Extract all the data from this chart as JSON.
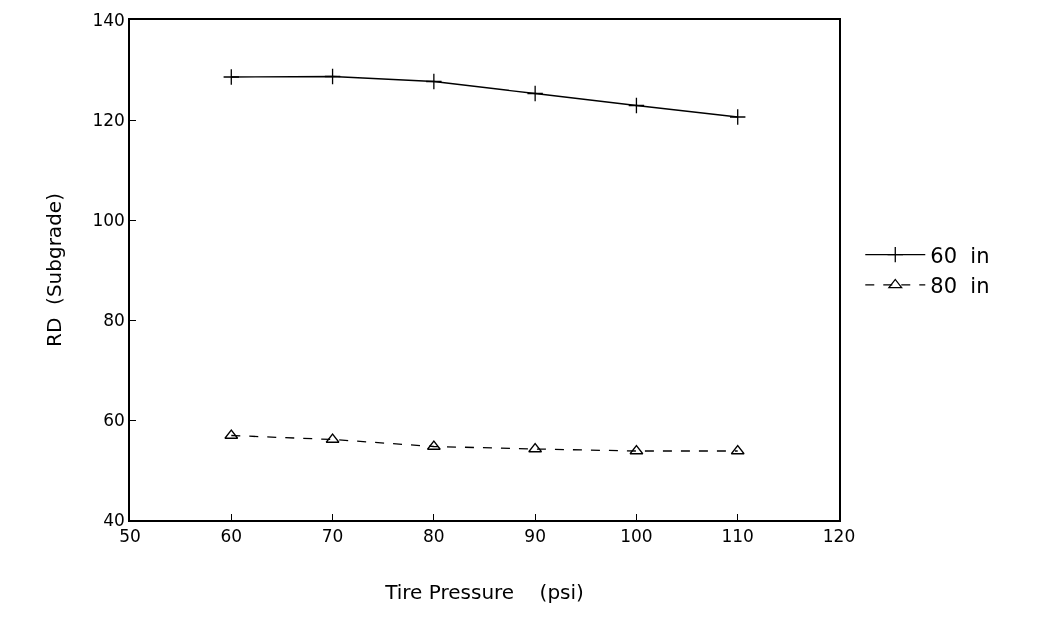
{
  "chart_data": {
    "type": "line",
    "xlabel": "Tire Pressure    (psi)",
    "ylabel": "RD  (Subgrade)",
    "x": [
      60,
      70,
      80,
      90,
      100,
      110
    ],
    "series": [
      {
        "name": "60  in",
        "color": "#000000",
        "marker": "cross",
        "line_style": "solid",
        "values": [
          128.6,
          128.7,
          127.7,
          125.3,
          122.9,
          120.6
        ]
      },
      {
        "name": "80  in",
        "color": "#000000",
        "marker": "triangle",
        "line_style": "dashed",
        "values": [
          56.9,
          56.1,
          54.7,
          54.2,
          53.8,
          53.8
        ]
      }
    ],
    "xlim": [
      50,
      120
    ],
    "xticks": [
      50,
      60,
      70,
      80,
      90,
      100,
      110,
      120
    ],
    "ylim": [
      40,
      140
    ],
    "yticks": [
      40,
      60,
      80,
      100,
      120,
      140
    ],
    "legend": "right"
  }
}
